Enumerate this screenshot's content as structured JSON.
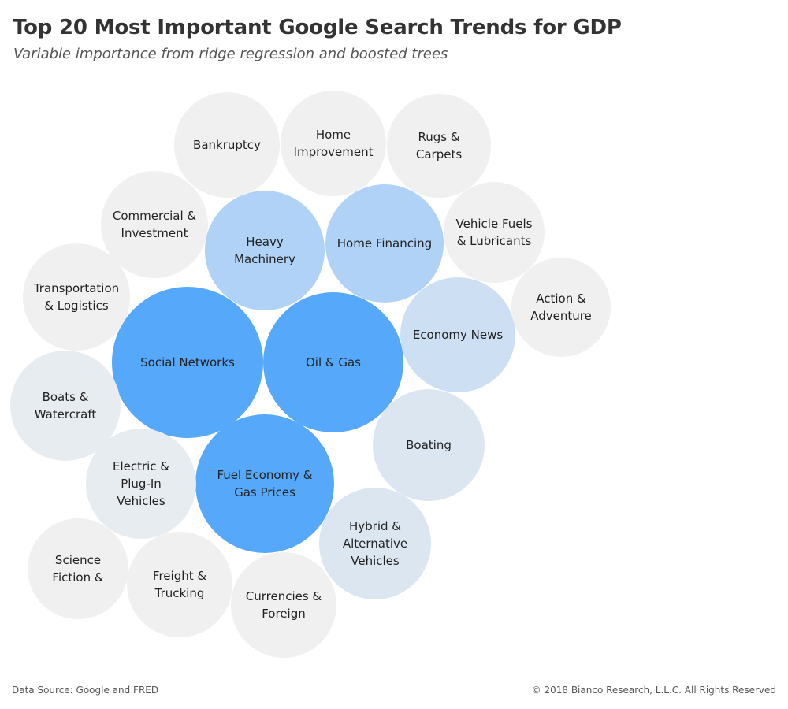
{
  "title": "Top 20 Most Important Google Search Trends for GDP",
  "subtitle": "Variable importance from ridge regression and boosted trees",
  "footer": {
    "source": "Data Source: Google and FRED",
    "copyright": "© 2018 Bianco Research, L.L.C. All Rights Reserved"
  },
  "colors": {
    "tier1": "#55a8fa",
    "tier2": "#afd2f6",
    "tier3": "#cde0f3",
    "tier4": "#dbe6f1",
    "tier5": "#e7ecf1",
    "tier6": "#f0f0f0",
    "text": "#222222"
  },
  "chart_data": {
    "type": "bubble",
    "encoding": "bubble size and color shade indicate variable importance (darker blue = more important)",
    "items": [
      {
        "name": "Social Networks",
        "lines": [
          "Social Networks"
        ],
        "tier": 1
      },
      {
        "name": "Oil & Gas",
        "lines": [
          "Oil & Gas"
        ],
        "tier": 1
      },
      {
        "name": "Fuel Economy & Gas Prices",
        "lines": [
          "Fuel Economy &",
          "Gas Prices"
        ],
        "tier": 1
      },
      {
        "name": "Heavy Machinery",
        "lines": [
          "Heavy",
          "Machinery"
        ],
        "tier": 2
      },
      {
        "name": "Home Financing",
        "lines": [
          "Home Financing"
        ],
        "tier": 2
      },
      {
        "name": "Economy News",
        "lines": [
          "Economy News"
        ],
        "tier": 3
      },
      {
        "name": "Boating",
        "lines": [
          "Boating"
        ],
        "tier": 4
      },
      {
        "name": "Hybrid & Alternative Vehicles",
        "lines": [
          "Hybrid &",
          "Alternative",
          "Vehicles"
        ],
        "tier": 4
      },
      {
        "name": "Electric & Plug-In Vehicles",
        "lines": [
          "Electric &",
          "Plug-In",
          "Vehicles"
        ],
        "tier": 5
      },
      {
        "name": "Boats & Watercraft",
        "lines": [
          "Boats &",
          "Watercraft"
        ],
        "tier": 5
      },
      {
        "name": "Transportation & Logistics",
        "lines": [
          "Transportation",
          "& Logistics"
        ],
        "tier": 6
      },
      {
        "name": "Commercial & Investment",
        "lines": [
          "Commercial &",
          "Investment"
        ],
        "tier": 6
      },
      {
        "name": "Bankruptcy",
        "lines": [
          "Bankruptcy"
        ],
        "tier": 6
      },
      {
        "name": "Home Improvement",
        "lines": [
          "Home",
          "Improvement"
        ],
        "tier": 6
      },
      {
        "name": "Rugs & Carpets",
        "lines": [
          "Rugs &",
          "Carpets"
        ],
        "tier": 6
      },
      {
        "name": "Vehicle Fuels & Lubricants",
        "lines": [
          "Vehicle Fuels",
          "& Lubricants"
        ],
        "tier": 6
      },
      {
        "name": "Action & Adventure",
        "lines": [
          "Action &",
          "Adventure"
        ],
        "tier": 6
      },
      {
        "name": "Currencies & Foreign",
        "lines": [
          "Currencies &",
          "Foreign"
        ],
        "tier": 6
      },
      {
        "name": "Freight & Trucking",
        "lines": [
          "Freight &",
          "Trucking"
        ],
        "tier": 6
      },
      {
        "name": "Science Fiction &",
        "lines": [
          "Science",
          "Fiction &"
        ],
        "tier": 6
      }
    ]
  }
}
